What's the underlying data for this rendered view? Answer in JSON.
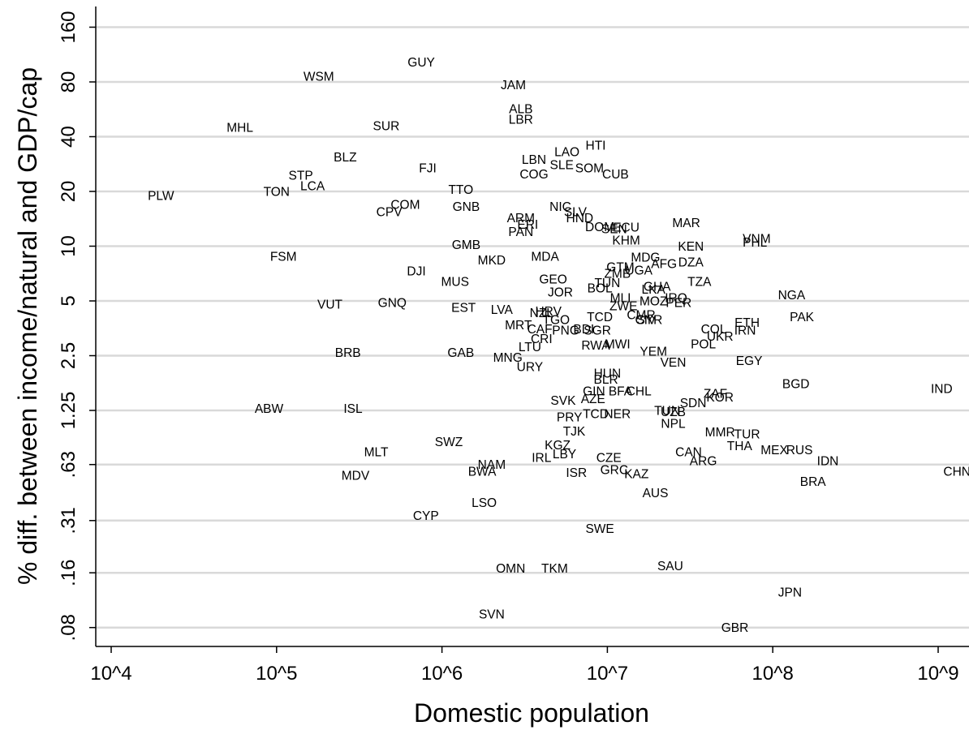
{
  "chart_data": {
    "type": "scatter",
    "marker": "country-code-labels",
    "xlabel": "Domestic population",
    "ylabel": "% diff. between income/natural and GDP/cap",
    "x_scale": "log10",
    "y_scale": "log2",
    "xlim": [
      7000,
      1400000000
    ],
    "ylim": [
      0.07,
      200
    ],
    "x_ticks": [
      {
        "value": 10000,
        "label": "10^4"
      },
      {
        "value": 100000,
        "label": "10^5"
      },
      {
        "value": 1000000,
        "label": "10^6"
      },
      {
        "value": 10000000,
        "label": "10^7"
      },
      {
        "value": 100000000,
        "label": "10^8"
      },
      {
        "value": 1000000000,
        "label": "10^9"
      }
    ],
    "y_ticks": [
      {
        "value": 0.08,
        "label": ".08"
      },
      {
        "value": 0.16,
        "label": ".16"
      },
      {
        "value": 0.31,
        "label": ".31"
      },
      {
        "value": 0.63,
        "label": ".63"
      },
      {
        "value": 1.25,
        "label": "1.25"
      },
      {
        "value": 2.5,
        "label": "2.5"
      },
      {
        "value": 5,
        "label": "5"
      },
      {
        "value": 10,
        "label": "10"
      },
      {
        "value": 20,
        "label": "20"
      },
      {
        "value": 40,
        "label": "40"
      },
      {
        "value": 80,
        "label": "80"
      },
      {
        "value": 160,
        "label": "160"
      }
    ],
    "grid": "horizontal",
    "points": [
      {
        "label": "GUY",
        "x": 750000,
        "y": 103
      },
      {
        "label": "WSM",
        "x": 180000,
        "y": 86
      },
      {
        "label": "JAM",
        "x": 2700000,
        "y": 77
      },
      {
        "label": "ALB",
        "x": 3000000,
        "y": 57
      },
      {
        "label": "LBR",
        "x": 3000000,
        "y": 50
      },
      {
        "label": "MHL",
        "x": 60000,
        "y": 45
      },
      {
        "label": "SUR",
        "x": 460000,
        "y": 46
      },
      {
        "label": "HTI",
        "x": 8500000,
        "y": 36
      },
      {
        "label": "LAO",
        "x": 5700000,
        "y": 33
      },
      {
        "label": "BLZ",
        "x": 260000,
        "y": 31
      },
      {
        "label": "LBN",
        "x": 3600000,
        "y": 30
      },
      {
        "label": "SLE",
        "x": 5300000,
        "y": 28
      },
      {
        "label": "SOM",
        "x": 7800000,
        "y": 27
      },
      {
        "label": "FJI",
        "x": 820000,
        "y": 27
      },
      {
        "label": "CUB",
        "x": 11200000,
        "y": 25
      },
      {
        "label": "COG",
        "x": 3600000,
        "y": 25
      },
      {
        "label": "STP",
        "x": 140000,
        "y": 24.5
      },
      {
        "label": "LCA",
        "x": 165000,
        "y": 21.5
      },
      {
        "label": "TON",
        "x": 100000,
        "y": 20
      },
      {
        "label": "PLW",
        "x": 20000,
        "y": 19
      },
      {
        "label": "TTO",
        "x": 1300000,
        "y": 20.5
      },
      {
        "label": "COM",
        "x": 600000,
        "y": 17
      },
      {
        "label": "GNB",
        "x": 1400000,
        "y": 16.5
      },
      {
        "label": "CPV",
        "x": 480000,
        "y": 15.5
      },
      {
        "label": "NIC",
        "x": 5200000,
        "y": 16.5
      },
      {
        "label": "SLV",
        "x": 6400000,
        "y": 15.5
      },
      {
        "label": "HND",
        "x": 6800000,
        "y": 14.3
      },
      {
        "label": "ARM",
        "x": 3000000,
        "y": 14.3
      },
      {
        "label": "ERI",
        "x": 3300000,
        "y": 13.2
      },
      {
        "label": "DOM",
        "x": 9000000,
        "y": 12.8
      },
      {
        "label": "ECU",
        "x": 13000000,
        "y": 12.7
      },
      {
        "label": "SEN",
        "x": 11000000,
        "y": 12.5
      },
      {
        "label": "PAN",
        "x": 3000000,
        "y": 12
      },
      {
        "label": "MAR",
        "x": 30000000,
        "y": 13.5
      },
      {
        "label": "VNM",
        "x": 80000000,
        "y": 11
      },
      {
        "label": "PHL",
        "x": 78000000,
        "y": 10.5
      },
      {
        "label": "KHM",
        "x": 13000000,
        "y": 10.8
      },
      {
        "label": "KEN",
        "x": 32000000,
        "y": 10
      },
      {
        "label": "GMB",
        "x": 1400000,
        "y": 10.2
      },
      {
        "label": "FSM",
        "x": 110000,
        "y": 8.8
      },
      {
        "label": "MDA",
        "x": 4200000,
        "y": 8.8
      },
      {
        "label": "MKD",
        "x": 2000000,
        "y": 8.4
      },
      {
        "label": "MDG",
        "x": 17000000,
        "y": 8.7
      },
      {
        "label": "DZA",
        "x": 32000000,
        "y": 8.2
      },
      {
        "label": "AFG",
        "x": 22000000,
        "y": 8.0
      },
      {
        "label": "GTM",
        "x": 12000000,
        "y": 7.7
      },
      {
        "label": "UGA",
        "x": 15500000,
        "y": 7.4
      },
      {
        "label": "DJI",
        "x": 700000,
        "y": 7.3
      },
      {
        "label": "ZMB",
        "x": 11500000,
        "y": 7.1
      },
      {
        "label": "MUS",
        "x": 1200000,
        "y": 6.4
      },
      {
        "label": "GEO",
        "x": 4700000,
        "y": 6.6
      },
      {
        "label": "TZA",
        "x": 36000000,
        "y": 6.4
      },
      {
        "label": "TUN",
        "x": 10000000,
        "y": 6.3
      },
      {
        "label": "BOL",
        "x": 9000000,
        "y": 5.9
      },
      {
        "label": "GHA",
        "x": 20000000,
        "y": 6.0
      },
      {
        "label": "LKA",
        "x": 19000000,
        "y": 5.8
      },
      {
        "label": "JOR",
        "x": 5200000,
        "y": 5.6
      },
      {
        "label": "NGA",
        "x": 130000000,
        "y": 5.4
      },
      {
        "label": "MLI",
        "x": 12000000,
        "y": 5.2
      },
      {
        "label": "MOZ",
        "x": 19000000,
        "y": 5.0
      },
      {
        "label": "IRQ",
        "x": 26000000,
        "y": 5.2
      },
      {
        "label": "PER",
        "x": 27000000,
        "y": 4.9
      },
      {
        "label": "VUT",
        "x": 210000,
        "y": 4.8
      },
      {
        "label": "GNQ",
        "x": 500000,
        "y": 4.9
      },
      {
        "label": "ZWE",
        "x": 12500000,
        "y": 4.7
      },
      {
        "label": "EST",
        "x": 1350000,
        "y": 4.6
      },
      {
        "label": "LVA",
        "x": 2300000,
        "y": 4.5
      },
      {
        "label": "NZL",
        "x": 4000000,
        "y": 4.3
      },
      {
        "label": "HRV",
        "x": 4400000,
        "y": 4.4
      },
      {
        "label": "CMR",
        "x": 16000000,
        "y": 4.2
      },
      {
        "label": "TCD",
        "x": 9000000,
        "y": 4.1
      },
      {
        "label": "SYR",
        "x": 18000000,
        "y": 3.95
      },
      {
        "label": "CIV",
        "x": 17000000,
        "y": 3.95
      },
      {
        "label": "PAK",
        "x": 150000000,
        "y": 4.1
      },
      {
        "label": "TGO",
        "x": 4900000,
        "y": 3.95
      },
      {
        "label": "MRT",
        "x": 2900000,
        "y": 3.7
      },
      {
        "label": "CAF",
        "x": 3900000,
        "y": 3.5
      },
      {
        "label": "PNG",
        "x": 5600000,
        "y": 3.45
      },
      {
        "label": "BDI",
        "x": 7200000,
        "y": 3.5
      },
      {
        "label": "SGR",
        "x": 8700000,
        "y": 3.45
      },
      {
        "label": "COL",
        "x": 44000000,
        "y": 3.5
      },
      {
        "label": "ETH",
        "x": 70000000,
        "y": 3.8
      },
      {
        "label": "IRN",
        "x": 68000000,
        "y": 3.45
      },
      {
        "label": "UKR",
        "x": 48000000,
        "y": 3.2
      },
      {
        "label": "CRI",
        "x": 4000000,
        "y": 3.1
      },
      {
        "label": "POL",
        "x": 38000000,
        "y": 2.9
      },
      {
        "label": "LTU",
        "x": 3400000,
        "y": 2.8
      },
      {
        "label": "RWA",
        "x": 8500000,
        "y": 2.85
      },
      {
        "label": "MWI",
        "x": 11500000,
        "y": 2.9
      },
      {
        "label": "YEM",
        "x": 19000000,
        "y": 2.65
      },
      {
        "label": "BRB",
        "x": 270000,
        "y": 2.6
      },
      {
        "label": "GAB",
        "x": 1300000,
        "y": 2.6
      },
      {
        "label": "MNG",
        "x": 2500000,
        "y": 2.45
      },
      {
        "label": "VEN",
        "x": 25000000,
        "y": 2.3
      },
      {
        "label": "EGY",
        "x": 72000000,
        "y": 2.35
      },
      {
        "label": "URY",
        "x": 3400000,
        "y": 2.18
      },
      {
        "label": "HUN",
        "x": 10000000,
        "y": 2.0
      },
      {
        "label": "BLR",
        "x": 9800000,
        "y": 1.86
      },
      {
        "label": "BGD",
        "x": 138000000,
        "y": 1.75
      },
      {
        "label": "IND",
        "x": 1050000000,
        "y": 1.65
      },
      {
        "label": "GIN",
        "x": 8300000,
        "y": 1.6
      },
      {
        "label": "BFA",
        "x": 12000000,
        "y": 1.6
      },
      {
        "label": "CHL",
        "x": 15500000,
        "y": 1.6
      },
      {
        "label": "ZAF",
        "x": 45000000,
        "y": 1.55
      },
      {
        "label": "KOR",
        "x": 48000000,
        "y": 1.48
      },
      {
        "label": "SVK",
        "x": 5400000,
        "y": 1.42
      },
      {
        "label": "AZE",
        "x": 8200000,
        "y": 1.45
      },
      {
        "label": "SDN",
        "x": 33000000,
        "y": 1.38
      },
      {
        "label": "ABW",
        "x": 90000,
        "y": 1.28
      },
      {
        "label": "ISL",
        "x": 290000,
        "y": 1.28
      },
      {
        "label": "TUR",
        "x": 70000000,
        "y": 0.93
      },
      {
        "label": "UZB",
        "x": 25000000,
        "y": 1.23
      },
      {
        "label": "TUN",
        "x": 23000000,
        "y": 1.25
      },
      {
        "label": "NER",
        "x": 11500000,
        "y": 1.2
      },
      {
        "label": "PRY",
        "x": 5900000,
        "y": 1.15
      },
      {
        "label": "TCD",
        "x": 8500000,
        "y": 1.2
      },
      {
        "label": "NPL",
        "x": 25000000,
        "y": 1.06
      },
      {
        "label": "MMR",
        "x": 48000000,
        "y": 0.95
      },
      {
        "label": "TJK",
        "x": 6300000,
        "y": 0.96
      },
      {
        "label": "THA",
        "x": 63000000,
        "y": 0.8
      },
      {
        "label": "SWZ",
        "x": 1100000,
        "y": 0.84
      },
      {
        "label": "KGZ",
        "x": 5000000,
        "y": 0.81
      },
      {
        "label": "MLT",
        "x": 400000,
        "y": 0.74
      },
      {
        "label": "MEX",
        "x": 102000000,
        "y": 0.76
      },
      {
        "label": "RUS",
        "x": 145000000,
        "y": 0.76
      },
      {
        "label": "CAN",
        "x": 31000000,
        "y": 0.74
      },
      {
        "label": "LBY",
        "x": 5500000,
        "y": 0.72
      },
      {
        "label": "IRL",
        "x": 4000000,
        "y": 0.69
      },
      {
        "label": "CZE",
        "x": 10200000,
        "y": 0.69
      },
      {
        "label": "IDN",
        "x": 215000000,
        "y": 0.66
      },
      {
        "label": "ARG",
        "x": 38000000,
        "y": 0.66
      },
      {
        "label": "NAM",
        "x": 2000000,
        "y": 0.63
      },
      {
        "label": "BWA",
        "x": 1750000,
        "y": 0.58
      },
      {
        "label": "GRC",
        "x": 11000000,
        "y": 0.59
      },
      {
        "label": "MDV",
        "x": 300000,
        "y": 0.55
      },
      {
        "label": "ISR",
        "x": 6500000,
        "y": 0.57
      },
      {
        "label": "KAZ",
        "x": 15000000,
        "y": 0.56
      },
      {
        "label": "CHN",
        "x": 1300000000,
        "y": 0.58
      },
      {
        "label": "BRA",
        "x": 175000000,
        "y": 0.51
      },
      {
        "label": "AUS",
        "x": 19500000,
        "y": 0.44
      },
      {
        "label": "LSO",
        "x": 1800000,
        "y": 0.39
      },
      {
        "label": "CYP",
        "x": 800000,
        "y": 0.33
      },
      {
        "label": "SWE",
        "x": 9000000,
        "y": 0.28
      },
      {
        "label": "SAU",
        ">x": 0,
        "x": 24000000,
        "y": 0.175
      },
      {
        "label": "OMN",
        "x": 2600000,
        "y": 0.17
      },
      {
        "label": "TKM",
        "x": 4800000,
        "y": 0.17
      },
      {
        "label": "JPN",
        "x": 127000000,
        "y": 0.125
      },
      {
        "label": "SVN",
        "x": 2000000,
        "y": 0.095
      },
      {
        "label": "GBR",
        "x": 59000000,
        "y": 0.08
      }
    ]
  }
}
